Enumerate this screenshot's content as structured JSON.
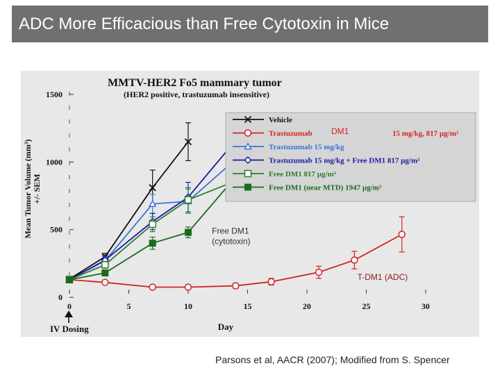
{
  "slide": {
    "title": "ADC More Efficacious than Free Cytotoxin in Mice",
    "citation": "Parsons et al, AACR (2007); Modified from S. Spencer"
  },
  "chart_data": {
    "type": "line",
    "title": "MMTV-HER2 Fo5 mammary tumor",
    "subtitle": "(HER2 positive, trastuzumab insensitive)",
    "xlabel": "Day",
    "ylabel_line1": "Mean Tumor Volume (mm³)",
    "ylabel_line2": "+/- SEM",
    "xlim": [
      0,
      31
    ],
    "ylim": [
      -20,
      1520
    ],
    "x_ticks": [
      0,
      5,
      10,
      15,
      20,
      25,
      30
    ],
    "y_ticks": [
      0,
      500,
      1000,
      1500
    ],
    "grid": false,
    "legend_position": "top-right",
    "dosing_label": "IV Dosing",
    "dosing_day": 0,
    "background_color": "#e8e8e8",
    "legend_background_color": "#d5d5d5",
    "annotations": {
      "free_dm1": {
        "line1": "Free DM1",
        "line2": "(cytotoxin)",
        "x": 12,
        "y": 470
      },
      "tdm1": {
        "text": "T-DM1 (ADC)",
        "x": 28.5,
        "y": 130
      },
      "legend_overlay": {
        "text": "DM1"
      }
    },
    "series": [
      {
        "name": "Vehicle",
        "dose": "",
        "color": "#111111",
        "marker": "x",
        "x": [
          0,
          3,
          7,
          10
        ],
        "y": [
          135,
          300,
          810,
          1150
        ],
        "err": [
          15,
          25,
          130,
          140
        ]
      },
      {
        "name": "Trastuzumab",
        "dose": "15 mg/kg, 817 µg/m²",
        "color": "#d42020",
        "marker": "circle-open",
        "x": [
          0,
          3,
          7,
          10,
          14,
          17,
          21,
          24,
          28
        ],
        "y": [
          130,
          110,
          75,
          75,
          85,
          115,
          185,
          275,
          465
        ],
        "err": [
          12,
          12,
          10,
          10,
          18,
          25,
          45,
          65,
          130
        ]
      },
      {
        "name": "Trastuzumab 15 mg/kg",
        "dose": "",
        "color": "#3a73d6",
        "marker": "triangle-open",
        "x": [
          0,
          3,
          7,
          10,
          14
        ],
        "y": [
          130,
          270,
          690,
          710,
          1020
        ],
        "err": [
          12,
          30,
          70,
          90,
          160
        ]
      },
      {
        "name": "Trastuzumab 15 mg/kg + Free DM1 817 µg/m²",
        "dose": "",
        "color": "#1a1aa0",
        "marker": "diamond-open",
        "x": [
          0,
          3,
          7,
          10,
          14
        ],
        "y": [
          130,
          275,
          560,
          740,
          1160
        ],
        "err": [
          12,
          30,
          60,
          110,
          160
        ]
      },
      {
        "name": "Free DM1 817 µg/m²",
        "dose": "",
        "color": "#2e7d2e",
        "marker": "square-open",
        "x": [
          0,
          3,
          7,
          10,
          14
        ],
        "y": [
          130,
          240,
          540,
          720,
          860
        ],
        "err": [
          12,
          25,
          55,
          90,
          100
        ]
      },
      {
        "name": "Free DM1 (near MTD) 1947 µg/m²",
        "dose": "",
        "color": "#1a6b1a",
        "marker": "square-filled",
        "x": [
          0,
          3,
          7,
          10,
          14
        ],
        "y": [
          130,
          180,
          400,
          480,
          890
        ],
        "err": [
          12,
          20,
          45,
          40,
          70
        ]
      }
    ]
  }
}
